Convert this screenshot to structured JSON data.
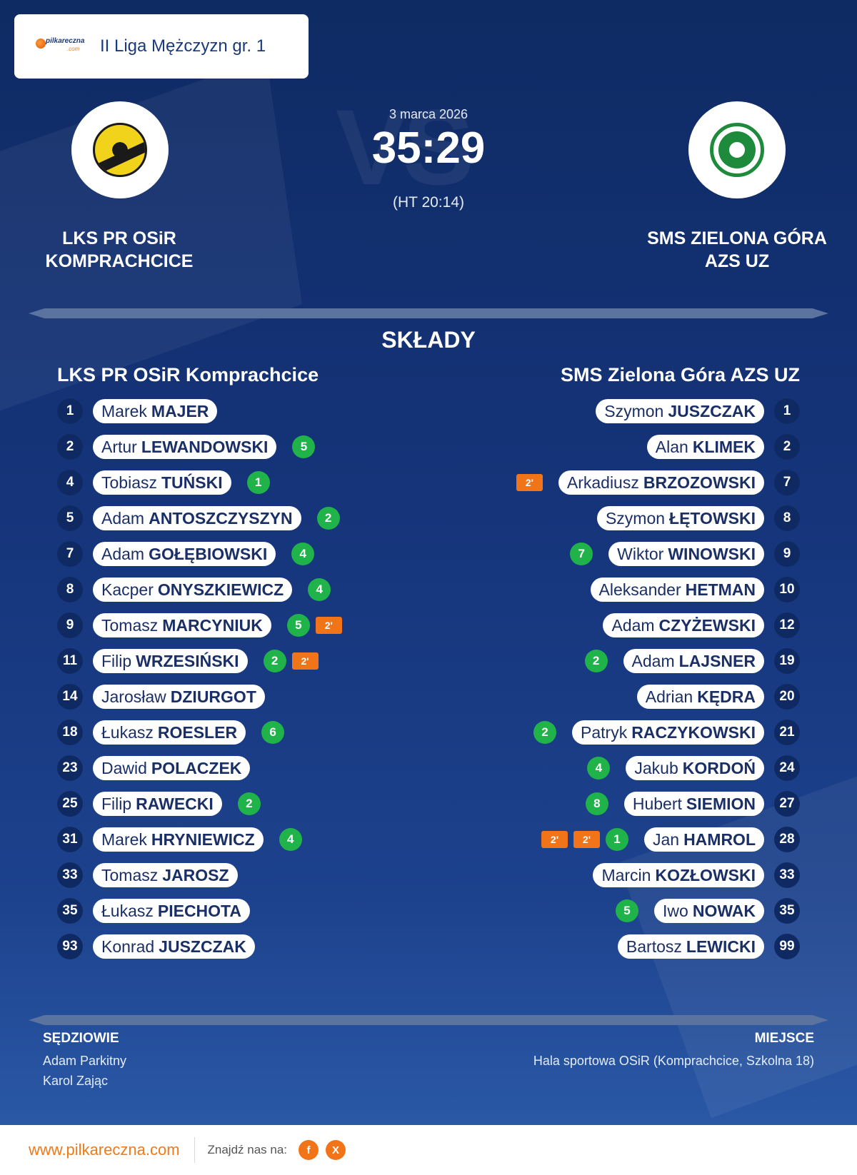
{
  "header": {
    "brand_main": "pilkareczna",
    "brand_sub": ".com",
    "league": "II Liga Mężczyzn gr. 1"
  },
  "match": {
    "date": "3 marca 2026",
    "score": "35:29",
    "halftime": "(HT 20:14)",
    "home_name_line1": "LKS PR OSiR",
    "home_name_line2": "KOMPRACHCICE",
    "away_name_line1": "SMS ZIELONA GÓRA",
    "away_name_line2": "AZS UZ"
  },
  "lineups": {
    "title": "SKŁADY",
    "home_team": "LKS PR OSiR Komprachcice",
    "away_team": "SMS Zielona Góra AZS UZ",
    "home": [
      {
        "number": "1",
        "first": "Marek",
        "last": "MAJER",
        "goals": null,
        "susp": []
      },
      {
        "number": "2",
        "first": "Artur",
        "last": "LEWANDOWSKI",
        "goals": "5",
        "susp": []
      },
      {
        "number": "4",
        "first": "Tobiasz",
        "last": "TUŃSKI",
        "goals": "1",
        "susp": []
      },
      {
        "number": "5",
        "first": "Adam",
        "last": "ANTOSZCZYSZYN",
        "goals": "2",
        "susp": []
      },
      {
        "number": "7",
        "first": "Adam",
        "last": "GOŁĘBIOWSKI",
        "goals": "4",
        "susp": []
      },
      {
        "number": "8",
        "first": "Kacper",
        "last": "ONYSZKIEWICZ",
        "goals": "4",
        "susp": []
      },
      {
        "number": "9",
        "first": "Tomasz",
        "last": "MARCYNIUK",
        "goals": "5",
        "susp": [
          "2'"
        ]
      },
      {
        "number": "11",
        "first": "Filip",
        "last": "WRZESIŃSKI",
        "goals": "2",
        "susp": [
          "2'"
        ]
      },
      {
        "number": "14",
        "first": "Jarosław",
        "last": "DZIURGOT",
        "goals": null,
        "susp": []
      },
      {
        "number": "18",
        "first": "Łukasz",
        "last": "ROESLER",
        "goals": "6",
        "susp": []
      },
      {
        "number": "23",
        "first": "Dawid",
        "last": "POLACZEK",
        "goals": null,
        "susp": []
      },
      {
        "number": "25",
        "first": "Filip",
        "last": "RAWECKI",
        "goals": "2",
        "susp": []
      },
      {
        "number": "31",
        "first": "Marek",
        "last": "HRYNIEWICZ",
        "goals": "4",
        "susp": []
      },
      {
        "number": "33",
        "first": "Tomasz",
        "last": "JAROSZ",
        "goals": null,
        "susp": []
      },
      {
        "number": "35",
        "first": "Łukasz",
        "last": "PIECHOTA",
        "goals": null,
        "susp": []
      },
      {
        "number": "93",
        "first": "Konrad",
        "last": "JUSZCZAK",
        "goals": null,
        "susp": []
      }
    ],
    "away": [
      {
        "number": "1",
        "first": "Szymon",
        "last": "JUSZCZAK",
        "goals": null,
        "susp": []
      },
      {
        "number": "2",
        "first": "Alan",
        "last": "KLIMEK",
        "goals": null,
        "susp": []
      },
      {
        "number": "7",
        "first": "Arkadiusz",
        "last": "BRZOZOWSKI",
        "goals": null,
        "susp": [
          "2'"
        ]
      },
      {
        "number": "8",
        "first": "Szymon",
        "last": "ŁĘTOWSKI",
        "goals": null,
        "susp": []
      },
      {
        "number": "9",
        "first": "Wiktor",
        "last": "WINOWSKI",
        "goals": "7",
        "susp": []
      },
      {
        "number": "10",
        "first": "Aleksander",
        "last": "HETMAN",
        "goals": null,
        "susp": []
      },
      {
        "number": "12",
        "first": "Adam",
        "last": "CZYŻEWSKI",
        "goals": null,
        "susp": []
      },
      {
        "number": "19",
        "first": "Adam",
        "last": "LAJSNER",
        "goals": "2",
        "susp": []
      },
      {
        "number": "20",
        "first": "Adrian",
        "last": "KĘDRA",
        "goals": null,
        "susp": []
      },
      {
        "number": "21",
        "first": "Patryk",
        "last": "RACZYKOWSKI",
        "goals": "2",
        "susp": []
      },
      {
        "number": "24",
        "first": "Jakub",
        "last": "KORDOŃ",
        "goals": "4",
        "susp": []
      },
      {
        "number": "27",
        "first": "Hubert",
        "last": "SIEMION",
        "goals": "8",
        "susp": []
      },
      {
        "number": "28",
        "first": "Jan",
        "last": "HAMROL",
        "goals": "1",
        "susp": [
          "2'",
          "2'"
        ]
      },
      {
        "number": "33",
        "first": "Marcin",
        "last": "KOZŁOWSKI",
        "goals": null,
        "susp": []
      },
      {
        "number": "35",
        "first": "Iwo",
        "last": "NOWAK",
        "goals": "5",
        "susp": []
      },
      {
        "number": "99",
        "first": "Bartosz",
        "last": "LEWICKI",
        "goals": null,
        "susp": []
      }
    ]
  },
  "officials": {
    "label": "SĘDZIOWIE",
    "referee1": "Adam Parkitny",
    "referee2": "Karol Zając"
  },
  "venue": {
    "label": "MIEJSCE",
    "name": "Hala sportowa OSiR (Komprachcice, Szkolna 18)"
  },
  "footer": {
    "site": "www.pilkareczna.com",
    "find_us": "Znajdź nas na:",
    "facebook_glyph": "f",
    "x_glyph": "X"
  },
  "colors": {
    "navy": "#12306a",
    "goal_green": "#20b34a",
    "suspension_orange": "#f27419",
    "brand_orange": "#f07a1a"
  }
}
